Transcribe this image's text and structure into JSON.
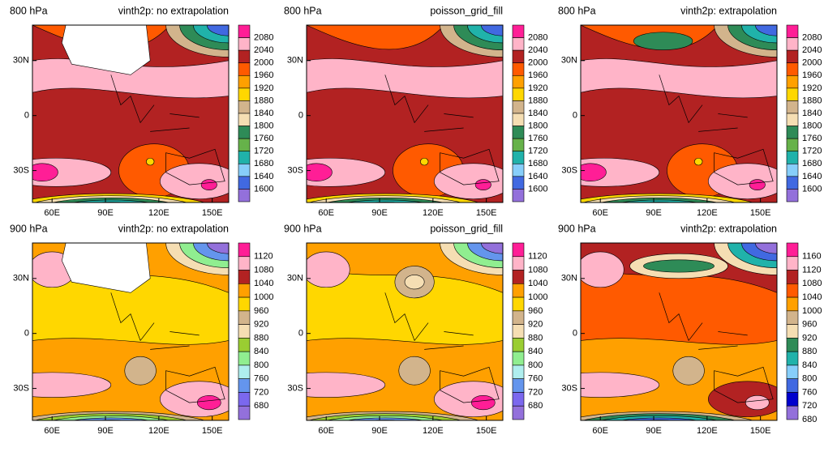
{
  "lon_labels": [
    "60E",
    "90E",
    "120E",
    "150E"
  ],
  "lat_labels": [
    "30N",
    "0",
    "30S"
  ],
  "panels": [
    {
      "left_title": "800 hPa",
      "right_title": "vinth2p: no extrapolation",
      "colorbar": {
        "labels": [
          2080,
          2040,
          2000,
          1960,
          1920,
          1880,
          1840,
          1800,
          1760,
          1720,
          1680,
          1640,
          1600
        ],
        "colors": [
          "#ff1e96",
          "#ffb4c8",
          "#b22222",
          "#ff5a00",
          "#ffa000",
          "#ffd700",
          "#d2b48c",
          "#f5deb3",
          "#2e8b57",
          "#66b24a",
          "#20b2aa",
          "#87cefa",
          "#4169e1",
          "#9370db"
        ]
      }
    },
    {
      "left_title": "800 hPa",
      "right_title": "poisson_grid_fill",
      "colorbar": {
        "labels": [
          2080,
          2040,
          2000,
          1960,
          1920,
          1880,
          1840,
          1800,
          1760,
          1720,
          1680,
          1640,
          1600
        ],
        "colors": [
          "#ff1e96",
          "#ffb4c8",
          "#b22222",
          "#ff5a00",
          "#ffa000",
          "#ffd700",
          "#d2b48c",
          "#f5deb3",
          "#2e8b57",
          "#66b24a",
          "#20b2aa",
          "#87cefa",
          "#4169e1",
          "#9370db"
        ]
      }
    },
    {
      "left_title": "800 hPa",
      "right_title": "vinth2p: extrapolation",
      "colorbar": {
        "labels": [
          2080,
          2040,
          2000,
          1960,
          1920,
          1880,
          1840,
          1800,
          1760,
          1720,
          1680,
          1640,
          1600
        ],
        "colors": [
          "#ff1e96",
          "#ffb4c8",
          "#b22222",
          "#ff5a00",
          "#ffa000",
          "#ffd700",
          "#d2b48c",
          "#f5deb3",
          "#2e8b57",
          "#66b24a",
          "#20b2aa",
          "#87cefa",
          "#4169e1",
          "#9370db"
        ]
      }
    },
    {
      "left_title": "900 hPa",
      "right_title": "vinth2p: no extrapolation",
      "colorbar": {
        "labels": [
          1120,
          1080,
          1040,
          1000,
          960,
          920,
          880,
          840,
          800,
          760,
          720,
          680
        ],
        "colors": [
          "#ff1e96",
          "#ffb4c8",
          "#b22222",
          "#ffa000",
          "#ffd700",
          "#d2b48c",
          "#f5deb3",
          "#9acd32",
          "#90ee90",
          "#afeeee",
          "#6495ed",
          "#7b68ee",
          "#9370db"
        ]
      }
    },
    {
      "left_title": "900 hPa",
      "right_title": "poisson_grid_fill",
      "colorbar": {
        "labels": [
          1120,
          1080,
          1040,
          1000,
          960,
          920,
          880,
          840,
          800,
          760,
          720,
          680
        ],
        "colors": [
          "#ff1e96",
          "#ffb4c8",
          "#b22222",
          "#ffa000",
          "#ffd700",
          "#d2b48c",
          "#f5deb3",
          "#9acd32",
          "#90ee90",
          "#afeeee",
          "#6495ed",
          "#7b68ee",
          "#9370db"
        ]
      }
    },
    {
      "left_title": "900 hPa",
      "right_title": "vinth2p: extrapolation",
      "colorbar": {
        "labels": [
          1160,
          1120,
          1080,
          1040,
          1000,
          960,
          920,
          880,
          840,
          800,
          760,
          720,
          680
        ],
        "colors": [
          "#ff1e96",
          "#ffb4c8",
          "#b22222",
          "#ff5a00",
          "#ffa000",
          "#d2b48c",
          "#f5deb3",
          "#2e8b57",
          "#20b2aa",
          "#87cefa",
          "#4169e1",
          "#0000cd",
          "#9370db"
        ]
      }
    }
  ]
}
